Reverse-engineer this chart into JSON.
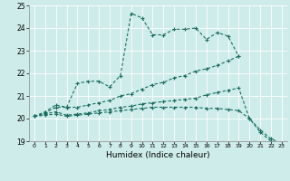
{
  "title": "",
  "xlabel": "Humidex (Indice chaleur)",
  "background_color": "#ceecea",
  "grid_color": "#ffffff",
  "line_color": "#1a6b5e",
  "xlim": [
    -0.5,
    23.5
  ],
  "ylim": [
    19,
    25
  ],
  "yticks": [
    19,
    20,
    21,
    22,
    23,
    24,
    25
  ],
  "xticks": [
    0,
    1,
    2,
    3,
    4,
    5,
    6,
    7,
    8,
    9,
    10,
    11,
    12,
    13,
    14,
    15,
    16,
    17,
    18,
    19,
    20,
    21,
    22,
    23
  ],
  "series": [
    {
      "x": [
        0,
        1,
        2,
        3,
        4,
        5,
        6,
        7,
        8,
        9,
        10,
        11,
        12,
        13,
        14,
        15,
        16,
        17,
        18,
        19
      ],
      "y": [
        20.1,
        20.3,
        20.6,
        20.5,
        21.55,
        21.65,
        21.65,
        21.4,
        21.9,
        24.65,
        24.45,
        23.7,
        23.7,
        23.95,
        23.95,
        24.0,
        23.5,
        23.8,
        23.65,
        22.75
      ]
    },
    {
      "x": [
        0,
        1,
        2,
        3,
        4,
        5,
        6,
        7,
        8,
        9,
        10,
        11,
        12,
        13,
        14,
        15,
        16,
        17,
        18,
        19
      ],
      "y": [
        20.1,
        20.25,
        20.5,
        20.5,
        20.5,
        20.6,
        20.7,
        20.8,
        21.0,
        21.1,
        21.3,
        21.5,
        21.6,
        21.8,
        21.9,
        22.1,
        22.2,
        22.35,
        22.55,
        22.75
      ]
    },
    {
      "x": [
        0,
        1,
        2,
        3,
        4,
        5,
        6,
        7,
        8,
        9,
        10,
        11,
        12,
        13,
        14,
        15,
        16,
        17,
        18,
        19,
        20,
        21,
        22,
        23
      ],
      "y": [
        20.1,
        20.2,
        20.3,
        20.15,
        20.2,
        20.25,
        20.35,
        20.4,
        20.5,
        20.55,
        20.65,
        20.7,
        20.75,
        20.8,
        20.85,
        20.9,
        21.05,
        21.15,
        21.25,
        21.35,
        20.0,
        19.5,
        19.1,
        18.9
      ]
    },
    {
      "x": [
        0,
        1,
        2,
        3,
        4,
        5,
        6,
        7,
        8,
        9,
        10,
        11,
        12,
        13,
        14,
        15,
        16,
        17,
        18,
        19,
        20,
        21,
        22,
        23
      ],
      "y": [
        20.1,
        20.15,
        20.2,
        20.1,
        20.15,
        20.2,
        20.25,
        20.3,
        20.35,
        20.4,
        20.45,
        20.5,
        20.5,
        20.5,
        20.5,
        20.5,
        20.45,
        20.45,
        20.4,
        20.35,
        20.0,
        19.4,
        19.0,
        18.9
      ]
    }
  ]
}
